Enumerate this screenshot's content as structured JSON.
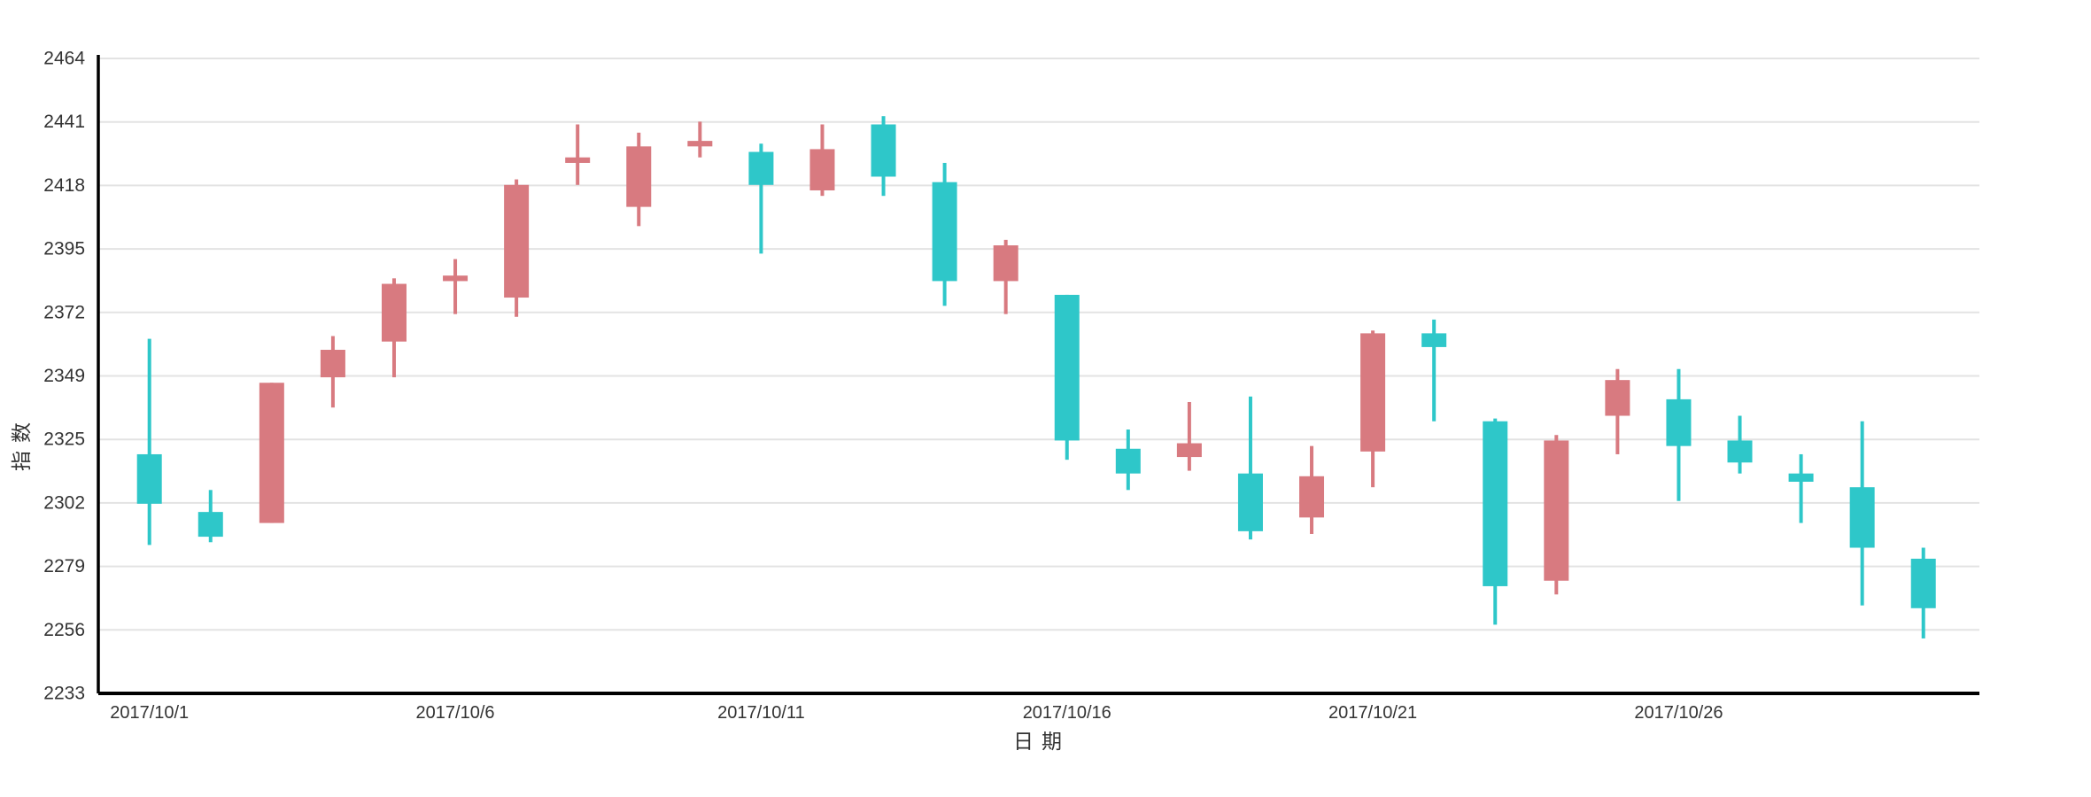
{
  "chart_data": {
    "type": "candlestick",
    "title": "",
    "xlabel": "日期",
    "ylabel": "指数",
    "ylim": [
      2233,
      2464
    ],
    "y_ticks": [
      2233,
      2256,
      2279,
      2302,
      2325,
      2349,
      2372,
      2395,
      2418,
      2441,
      2464
    ],
    "x_tick_labels": [
      {
        "index": 0,
        "label": "2017/10/1"
      },
      {
        "index": 5,
        "label": "2017/10/6"
      },
      {
        "index": 10,
        "label": "2017/10/11"
      },
      {
        "index": 15,
        "label": "2017/10/16"
      },
      {
        "index": 20,
        "label": "2017/10/21"
      },
      {
        "index": 25,
        "label": "2017/10/26"
      }
    ],
    "grid": true,
    "legend_position": "none",
    "colors": {
      "bullish": "#d87a80",
      "bearish": "#2ec7c9",
      "gridline": "#e3e3e3",
      "axis_line": "#000000",
      "label_text": "#333333"
    },
    "candles": [
      {
        "date": "2017/10/1",
        "open": 2320,
        "close": 2302,
        "low": 2287,
        "high": 2362
      },
      {
        "date": "2017/10/2",
        "open": 2299,
        "close": 2290,
        "low": 2288,
        "high": 2307
      },
      {
        "date": "2017/10/3",
        "open": 2295,
        "close": 2346,
        "low": 2295,
        "high": 2346
      },
      {
        "date": "2017/10/4",
        "open": 2348,
        "close": 2358,
        "low": 2337,
        "high": 2363
      },
      {
        "date": "2017/10/5",
        "open": 2361,
        "close": 2382,
        "low": 2348,
        "high": 2384
      },
      {
        "date": "2017/10/6",
        "open": 2383,
        "close": 2385,
        "low": 2371,
        "high": 2391
      },
      {
        "date": "2017/10/7",
        "open": 2377,
        "close": 2418,
        "low": 2370,
        "high": 2420
      },
      {
        "date": "2017/10/8",
        "open": 2426,
        "close": 2428,
        "low": 2418,
        "high": 2440
      },
      {
        "date": "2017/10/9",
        "open": 2410,
        "close": 2432,
        "low": 2403,
        "high": 2437
      },
      {
        "date": "2017/10/10",
        "open": 2432,
        "close": 2434,
        "low": 2428,
        "high": 2441
      },
      {
        "date": "2017/10/11",
        "open": 2430,
        "close": 2418,
        "low": 2393,
        "high": 2433
      },
      {
        "date": "2017/10/12",
        "open": 2416,
        "close": 2431,
        "low": 2414,
        "high": 2440
      },
      {
        "date": "2017/10/13",
        "open": 2440,
        "close": 2421,
        "low": 2414,
        "high": 2443
      },
      {
        "date": "2017/10/14",
        "open": 2419,
        "close": 2383,
        "low": 2374,
        "high": 2426
      },
      {
        "date": "2017/10/15",
        "open": 2383,
        "close": 2396,
        "low": 2371,
        "high": 2398
      },
      {
        "date": "2017/10/16",
        "open": 2378,
        "close": 2325,
        "low": 2318,
        "high": 2378
      },
      {
        "date": "2017/10/17",
        "open": 2322,
        "close": 2313,
        "low": 2307,
        "high": 2329
      },
      {
        "date": "2017/10/18",
        "open": 2319,
        "close": 2324,
        "low": 2314,
        "high": 2339
      },
      {
        "date": "2017/10/19",
        "open": 2313,
        "close": 2292,
        "low": 2289,
        "high": 2341
      },
      {
        "date": "2017/10/20",
        "open": 2297,
        "close": 2312,
        "low": 2291,
        "high": 2323
      },
      {
        "date": "2017/10/21",
        "open": 2321,
        "close": 2364,
        "low": 2308,
        "high": 2365
      },
      {
        "date": "2017/10/22",
        "open": 2364,
        "close": 2359,
        "low": 2332,
        "high": 2369
      },
      {
        "date": "2017/10/23",
        "open": 2332,
        "close": 2272,
        "low": 2258,
        "high": 2333
      },
      {
        "date": "2017/10/24",
        "open": 2274,
        "close": 2325,
        "low": 2269,
        "high": 2327
      },
      {
        "date": "2017/10/25",
        "open": 2334,
        "close": 2347,
        "low": 2320,
        "high": 2351
      },
      {
        "date": "2017/10/26",
        "open": 2340,
        "close": 2323,
        "low": 2303,
        "high": 2351
      },
      {
        "date": "2017/10/27",
        "open": 2325,
        "close": 2317,
        "low": 2313,
        "high": 2334
      },
      {
        "date": "2017/10/28",
        "open": 2313,
        "close": 2310,
        "low": 2295,
        "high": 2320
      },
      {
        "date": "2017/10/29",
        "open": 2308,
        "close": 2286,
        "low": 2265,
        "high": 2332
      },
      {
        "date": "2017/10/30",
        "open": 2282,
        "close": 2264,
        "low": 2253,
        "high": 2286
      }
    ]
  }
}
